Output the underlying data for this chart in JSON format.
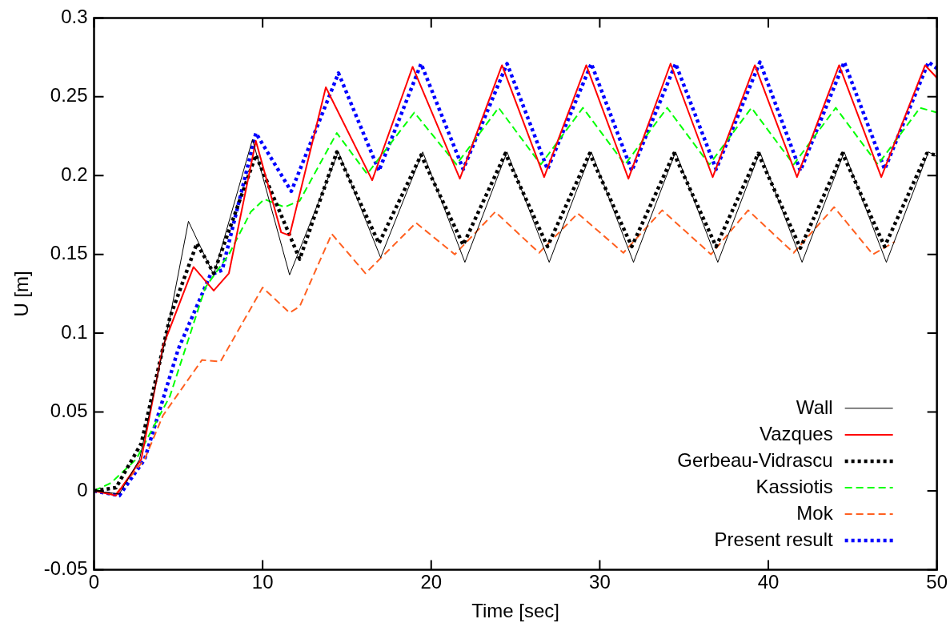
{
  "chart_data": {
    "type": "line",
    "xlabel": "Time [sec]",
    "ylabel": "U [m]",
    "xlim": [
      0,
      50
    ],
    "xticks": [
      0,
      10,
      20,
      30,
      40,
      50
    ],
    "ylim": [
      -0.05,
      0.3
    ],
    "yticks": [
      -0.05,
      0,
      0.05,
      0.1,
      0.15,
      0.2,
      0.25,
      0.3
    ],
    "grid": false,
    "legend": "bottom right",
    "marker": "none",
    "series": [
      {
        "name": "Wall",
        "color": "#000000",
        "line_style": "solid",
        "x": [
          0,
          1.5,
          2.7,
          4.5,
          5.6,
          7.1,
          9.4,
          11.6,
          14.5,
          17,
          19.5,
          22,
          24.5,
          27,
          29.5,
          32,
          34.5,
          37,
          39.5,
          42,
          44.5,
          47,
          49.5,
          50
        ],
        "values": [
          0,
          -0.002,
          0.02,
          0.11,
          0.171,
          0.137,
          0.223,
          0.137,
          0.215,
          0.148,
          0.215,
          0.145,
          0.215,
          0.145,
          0.215,
          0.145,
          0.215,
          0.145,
          0.215,
          0.145,
          0.215,
          0.145,
          0.215,
          0.212
        ]
      },
      {
        "name": "Vazques",
        "color": "#ff0000",
        "line_style": "solid",
        "x": [
          0,
          1.3,
          2.8,
          4.1,
          5.9,
          7.1,
          8.0,
          9.6,
          11.1,
          11.6,
          13.75,
          16.5,
          18.9,
          21.7,
          24.2,
          26.7,
          29.2,
          31.7,
          34.2,
          36.7,
          39.2,
          41.7,
          44.2,
          46.7,
          49.3,
          50
        ],
        "values": [
          0,
          -0.003,
          0.02,
          0.092,
          0.142,
          0.127,
          0.138,
          0.222,
          0.164,
          0.162,
          0.256,
          0.197,
          0.269,
          0.198,
          0.27,
          0.199,
          0.27,
          0.198,
          0.271,
          0.199,
          0.27,
          0.199,
          0.27,
          0.199,
          0.27,
          0.262
        ]
      },
      {
        "name": "Gerbeau-Vidrascu",
        "color": "#000000",
        "line_style": "dotted",
        "x": [
          0,
          1.3,
          2.8,
          4.5,
          6.1,
          7.1,
          9.6,
          12.2,
          14.4,
          16.9,
          19.4,
          21.9,
          24.4,
          26.9,
          29.4,
          31.9,
          34.4,
          36.9,
          39.4,
          41.9,
          44.4,
          46.9,
          49.4,
          50
        ],
        "values": [
          0,
          0.002,
          0.03,
          0.11,
          0.157,
          0.138,
          0.213,
          0.147,
          0.215,
          0.157,
          0.213,
          0.156,
          0.214,
          0.155,
          0.214,
          0.155,
          0.214,
          0.155,
          0.214,
          0.154,
          0.214,
          0.155,
          0.214,
          0.213
        ]
      },
      {
        "name": "Kassiotis",
        "color": "#00ff00",
        "line_style": "dashed",
        "x": [
          0,
          1,
          2.5,
          4.5,
          6.6,
          8,
          9.3,
          10.1,
          11.3,
          12.2,
          14.4,
          16.2,
          19,
          21.5,
          24,
          26.5,
          29,
          31.5,
          34,
          36.5,
          39,
          41.5,
          44,
          46.5,
          49,
          50
        ],
        "values": [
          0,
          0.005,
          0.02,
          0.06,
          0.129,
          0.15,
          0.177,
          0.185,
          0.18,
          0.184,
          0.227,
          0.201,
          0.24,
          0.207,
          0.243,
          0.207,
          0.243,
          0.207,
          0.243,
          0.207,
          0.243,
          0.207,
          0.243,
          0.207,
          0.243,
          0.24
        ]
      },
      {
        "name": "Mok",
        "color": "#ff6020",
        "line_style": "dashed",
        "x": [
          0,
          1.3,
          3,
          4.1,
          6.4,
          7.5,
          10,
          11.6,
          12.2,
          14.1,
          16.1,
          19.1,
          21.4,
          23.8,
          26.4,
          28.7,
          31.4,
          33.7,
          36.6,
          38.8,
          41.5,
          43.9,
          46.2,
          47.5
        ],
        "values": [
          0,
          -0.002,
          0.02,
          0.048,
          0.083,
          0.082,
          0.129,
          0.113,
          0.117,
          0.163,
          0.138,
          0.17,
          0.15,
          0.177,
          0.151,
          0.176,
          0.151,
          0.178,
          0.15,
          0.178,
          0.151,
          0.18,
          0.15,
          0.158
        ]
      },
      {
        "name": "Present result",
        "color": "#0000ff",
        "line_style": "dotted",
        "x": [
          0,
          1.5,
          3,
          5,
          6.9,
          7.6,
          9.6,
          11.7,
          14.5,
          16.9,
          19.4,
          21.9,
          24.5,
          26.9,
          29.5,
          31.9,
          34.5,
          36.9,
          39.5,
          41.9,
          44.5,
          46.9,
          49.5,
          50
        ],
        "values": [
          0,
          -0.003,
          0.02,
          0.09,
          0.137,
          0.14,
          0.227,
          0.19,
          0.265,
          0.203,
          0.271,
          0.204,
          0.271,
          0.204,
          0.271,
          0.203,
          0.271,
          0.204,
          0.272,
          0.203,
          0.272,
          0.204,
          0.272,
          0.268
        ]
      }
    ]
  }
}
